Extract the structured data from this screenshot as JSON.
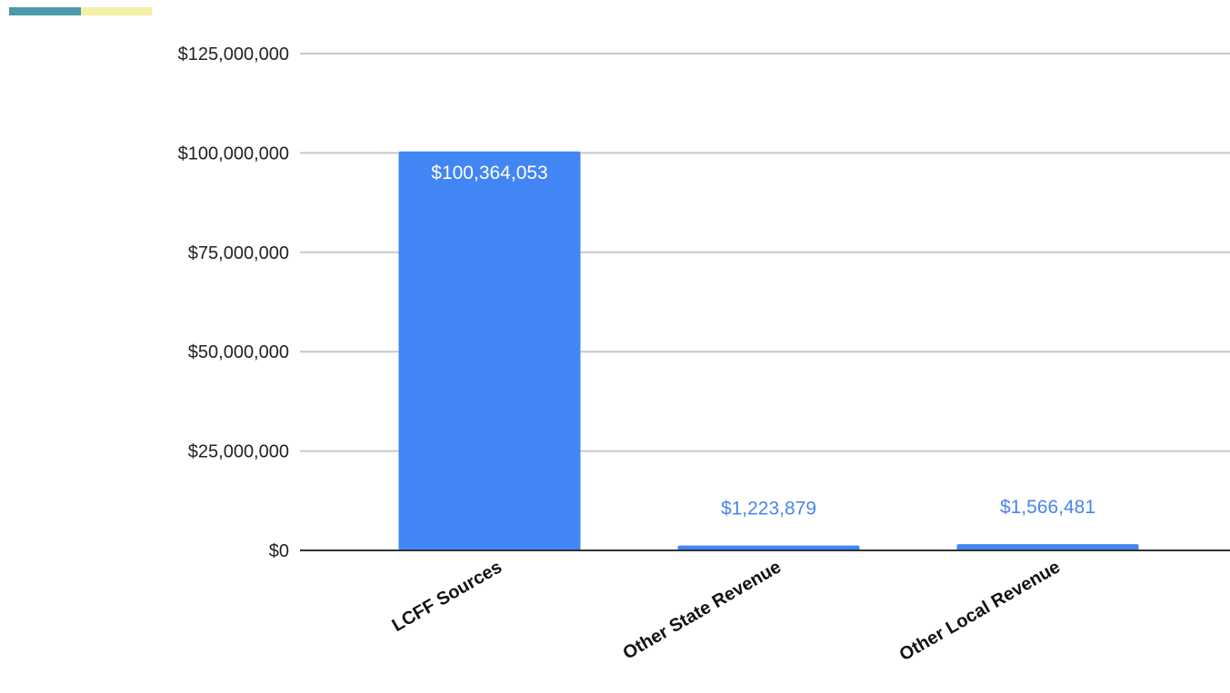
{
  "header": {
    "swatch_colors": [
      "#4a9aa8",
      "#f5f0a8"
    ]
  },
  "chart_data": {
    "type": "bar",
    "categories": [
      "LCFF Sources",
      "Other State Revenue",
      "Other Local Revenue"
    ],
    "values": [
      100364053,
      1223879,
      1566481
    ],
    "data_labels": [
      "$100,364,053",
      "$1,223,879",
      "$1,566,481"
    ],
    "title": "",
    "xlabel": "",
    "ylabel": "",
    "ylim": [
      0,
      125000000
    ],
    "yticks": [
      0,
      25000000,
      50000000,
      75000000,
      100000000,
      125000000
    ],
    "ytick_labels": [
      "$0",
      "$25,000,000",
      "$50,000,000",
      "$75,000,000",
      "$100,000,000",
      "$125,000,000"
    ],
    "grid": true,
    "bar_color": "#4285f4",
    "gridline_color": "#c8c8c8",
    "axis_color": "#333333"
  }
}
